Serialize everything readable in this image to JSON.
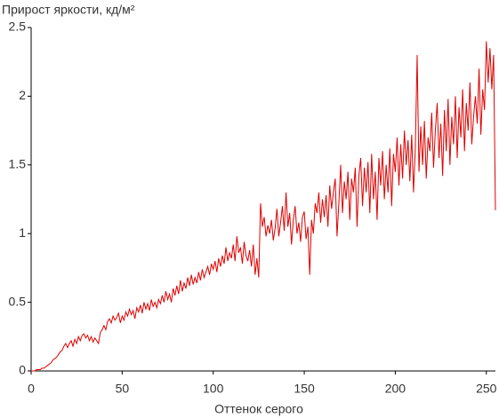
{
  "chart_data": {
    "type": "line",
    "title": "Прирост яркости, кд/м²",
    "x_label": "Оттенок серого",
    "xlim": [
      0,
      255
    ],
    "xticks": [
      0,
      50,
      100,
      150,
      200,
      250
    ],
    "ylim": [
      0,
      2.5
    ],
    "yticks": [
      0,
      0.5,
      1,
      1.5,
      2,
      2.5
    ],
    "grid": false,
    "x": [
      0,
      1,
      2,
      3,
      4,
      5,
      6,
      7,
      8,
      9,
      10,
      11,
      12,
      13,
      14,
      15,
      16,
      17,
      18,
      19,
      20,
      21,
      22,
      23,
      24,
      25,
      26,
      27,
      28,
      29,
      30,
      31,
      32,
      33,
      34,
      35,
      36,
      37,
      38,
      39,
      40,
      41,
      42,
      43,
      44,
      45,
      46,
      47,
      48,
      49,
      50,
      51,
      52,
      53,
      54,
      55,
      56,
      57,
      58,
      59,
      60,
      61,
      62,
      63,
      64,
      65,
      66,
      67,
      68,
      69,
      70,
      71,
      72,
      73,
      74,
      75,
      76,
      77,
      78,
      79,
      80,
      81,
      82,
      83,
      84,
      85,
      86,
      87,
      88,
      89,
      90,
      91,
      92,
      93,
      94,
      95,
      96,
      97,
      98,
      99,
      100,
      101,
      102,
      103,
      104,
      105,
      106,
      107,
      108,
      109,
      110,
      111,
      112,
      113,
      114,
      115,
      116,
      117,
      118,
      119,
      120,
      121,
      122,
      123,
      124,
      125,
      126,
      127,
      128,
      129,
      130,
      131,
      132,
      133,
      134,
      135,
      136,
      137,
      138,
      139,
      140,
      141,
      142,
      143,
      144,
      145,
      146,
      147,
      148,
      149,
      150,
      151,
      152,
      153,
      154,
      155,
      156,
      157,
      158,
      159,
      160,
      161,
      162,
      163,
      164,
      165,
      166,
      167,
      168,
      169,
      170,
      171,
      172,
      173,
      174,
      175,
      176,
      177,
      178,
      179,
      180,
      181,
      182,
      183,
      184,
      185,
      186,
      187,
      188,
      189,
      190,
      191,
      192,
      193,
      194,
      195,
      196,
      197,
      198,
      199,
      200,
      201,
      202,
      203,
      204,
      205,
      206,
      207,
      208,
      209,
      210,
      211,
      212,
      213,
      214,
      215,
      216,
      217,
      218,
      219,
      220,
      221,
      222,
      223,
      224,
      225,
      226,
      227,
      228,
      229,
      230,
      231,
      232,
      233,
      234,
      235,
      236,
      237,
      238,
      239,
      240,
      241,
      242,
      243,
      244,
      245,
      246,
      247,
      248,
      249,
      250,
      251,
      252,
      253,
      254,
      255
    ],
    "series": [
      {
        "color": "#e00000",
        "values": [
          0,
          0,
          0,
          0.01,
          0.01,
          0.01,
          0.02,
          0.02,
          0.03,
          0.04,
          0.05,
          0.06,
          0.08,
          0.09,
          0.1,
          0.12,
          0.14,
          0.15,
          0.18,
          0.2,
          0.17,
          0.2,
          0.22,
          0.18,
          0.23,
          0.2,
          0.25,
          0.22,
          0.26,
          0.27,
          0.24,
          0.26,
          0.22,
          0.25,
          0.21,
          0.24,
          0.22,
          0.2,
          0.28,
          0.3,
          0.33,
          0.3,
          0.36,
          0.38,
          0.35,
          0.4,
          0.37,
          0.39,
          0.42,
          0.35,
          0.4,
          0.37,
          0.43,
          0.4,
          0.45,
          0.41,
          0.44,
          0.38,
          0.46,
          0.43,
          0.48,
          0.42,
          0.5,
          0.45,
          0.49,
          0.44,
          0.52,
          0.47,
          0.5,
          0.46,
          0.52,
          0.49,
          0.55,
          0.5,
          0.58,
          0.52,
          0.56,
          0.5,
          0.6,
          0.55,
          0.62,
          0.56,
          0.66,
          0.58,
          0.64,
          0.6,
          0.68,
          0.62,
          0.7,
          0.63,
          0.68,
          0.64,
          0.72,
          0.66,
          0.74,
          0.68,
          0.72,
          0.76,
          0.7,
          0.78,
          0.74,
          0.8,
          0.72,
          0.82,
          0.76,
          0.84,
          0.78,
          0.9,
          0.8,
          0.86,
          0.82,
          0.92,
          0.8,
          0.98,
          0.86,
          0.9,
          0.78,
          0.94,
          0.84,
          0.8,
          0.88,
          0.76,
          0.92,
          0.7,
          0.82,
          0.68,
          1.22,
          1.05,
          1.12,
          0.98,
          1.06,
          1.0,
          1.1,
          0.95,
          1.04,
          1.18,
          0.98,
          1.08,
          1.2,
          1.02,
          1.3,
          1.05,
          1.15,
          0.92,
          1.1,
          1.2,
          1.0,
          1.08,
          0.94,
          1.12,
          1.16,
          0.96,
          1.05,
          0.7,
          1.1,
          1.0,
          1.22,
          1.15,
          1.3,
          1.08,
          1.25,
          1.12,
          1.28,
          1.05,
          1.35,
          1.18,
          1.3,
          1.4,
          0.98,
          1.22,
          1.5,
          1.15,
          1.38,
          1.25,
          1.45,
          1.1,
          1.4,
          1.3,
          1.48,
          1.05,
          1.42,
          1.55,
          1.2,
          1.48,
          1.3,
          1.52,
          1.15,
          1.58,
          1.25,
          1.45,
          1.1,
          1.55,
          1.35,
          1.6,
          1.25,
          1.5,
          1.3,
          1.62,
          1.2,
          1.58,
          1.45,
          1.7,
          1.35,
          1.65,
          1.4,
          1.75,
          1.5,
          1.68,
          1.38,
          1.72,
          1.3,
          1.62,
          2.3,
          1.45,
          1.78,
          1.5,
          1.82,
          1.4,
          1.7,
          1.6,
          1.88,
          1.48,
          1.75,
          1.95,
          1.55,
          1.8,
          1.42,
          1.9,
          1.6,
          1.98,
          1.5,
          1.85,
          1.65,
          2.0,
          1.55,
          1.92,
          1.7,
          2.05,
          1.6,
          1.95,
          1.75,
          2.1,
          1.65,
          1.85,
          2.0,
          1.8,
          2.2,
          1.72,
          2.05,
          1.9,
          2.4,
          2.1,
          2.35,
          2.05,
          2.3,
          1.17
        ]
      }
    ]
  }
}
